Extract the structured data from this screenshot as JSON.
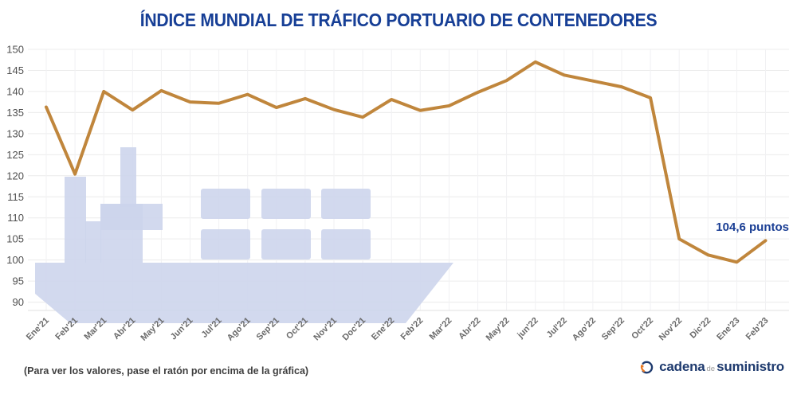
{
  "title": "ÍNDICE MUNDIAL DE TRÁFICO PORTUARIO DE CONTENEDORES",
  "chart_data": {
    "type": "line",
    "title": "ÍNDICE MUNDIAL DE TRÁFICO PORTUARIO DE CONTENEDORES",
    "categories": [
      "Ene'21",
      "Feb'21",
      "Mar'21",
      "Abr'21",
      "May'21",
      "Jun'21",
      "Jul'21",
      "Ago'21",
      "Sep'21",
      "Oct'21",
      "Nov'21",
      "Doc'21",
      "Ene'22",
      "Feb'22",
      "Mar'22",
      "Abr'22",
      "May'22",
      "jun'22",
      "Jul'22",
      "Ago'22",
      "Sep'22",
      "Oct'22",
      "Nov'22",
      "Dic'22",
      "Ene'23",
      "Feb'23"
    ],
    "values": [
      136.3,
      120.4,
      140.0,
      135.6,
      140.2,
      137.5,
      137.2,
      139.3,
      136.2,
      138.3,
      135.7,
      133.9,
      138.1,
      135.5,
      136.6,
      139.8,
      142.6,
      147.0,
      143.9,
      142.5,
      141.1,
      138.5,
      105.0,
      101.2,
      99.5,
      104.6
    ],
    "ylim": [
      90,
      150
    ],
    "ytick_step": 5,
    "grid": true,
    "legend": "none",
    "xlabel": "",
    "ylabel": "",
    "line_color": "#c0863c",
    "annotation": {
      "text": "104,6 puntos",
      "value": 104.6,
      "category": "Feb'23"
    }
  },
  "footer": {
    "note": "(Para ver los valores, pase el ratón por encima de la gráfica)",
    "logo": {
      "word1": "cadena",
      "word2": "de",
      "word3": "suministro"
    }
  },
  "icons": {
    "watermark": "container-ship-icon",
    "logo": "circular-arrows-icon"
  },
  "colors": {
    "title_navy": "#173f96",
    "annotation_navy": "#1a3e94",
    "line_ochre": "#c0863c",
    "watermark_lavender": "#ccd4ec",
    "logo_navy": "#1e3a6e",
    "logo_orange": "#e87722",
    "axis_label_gray": "#6a6a6a"
  }
}
